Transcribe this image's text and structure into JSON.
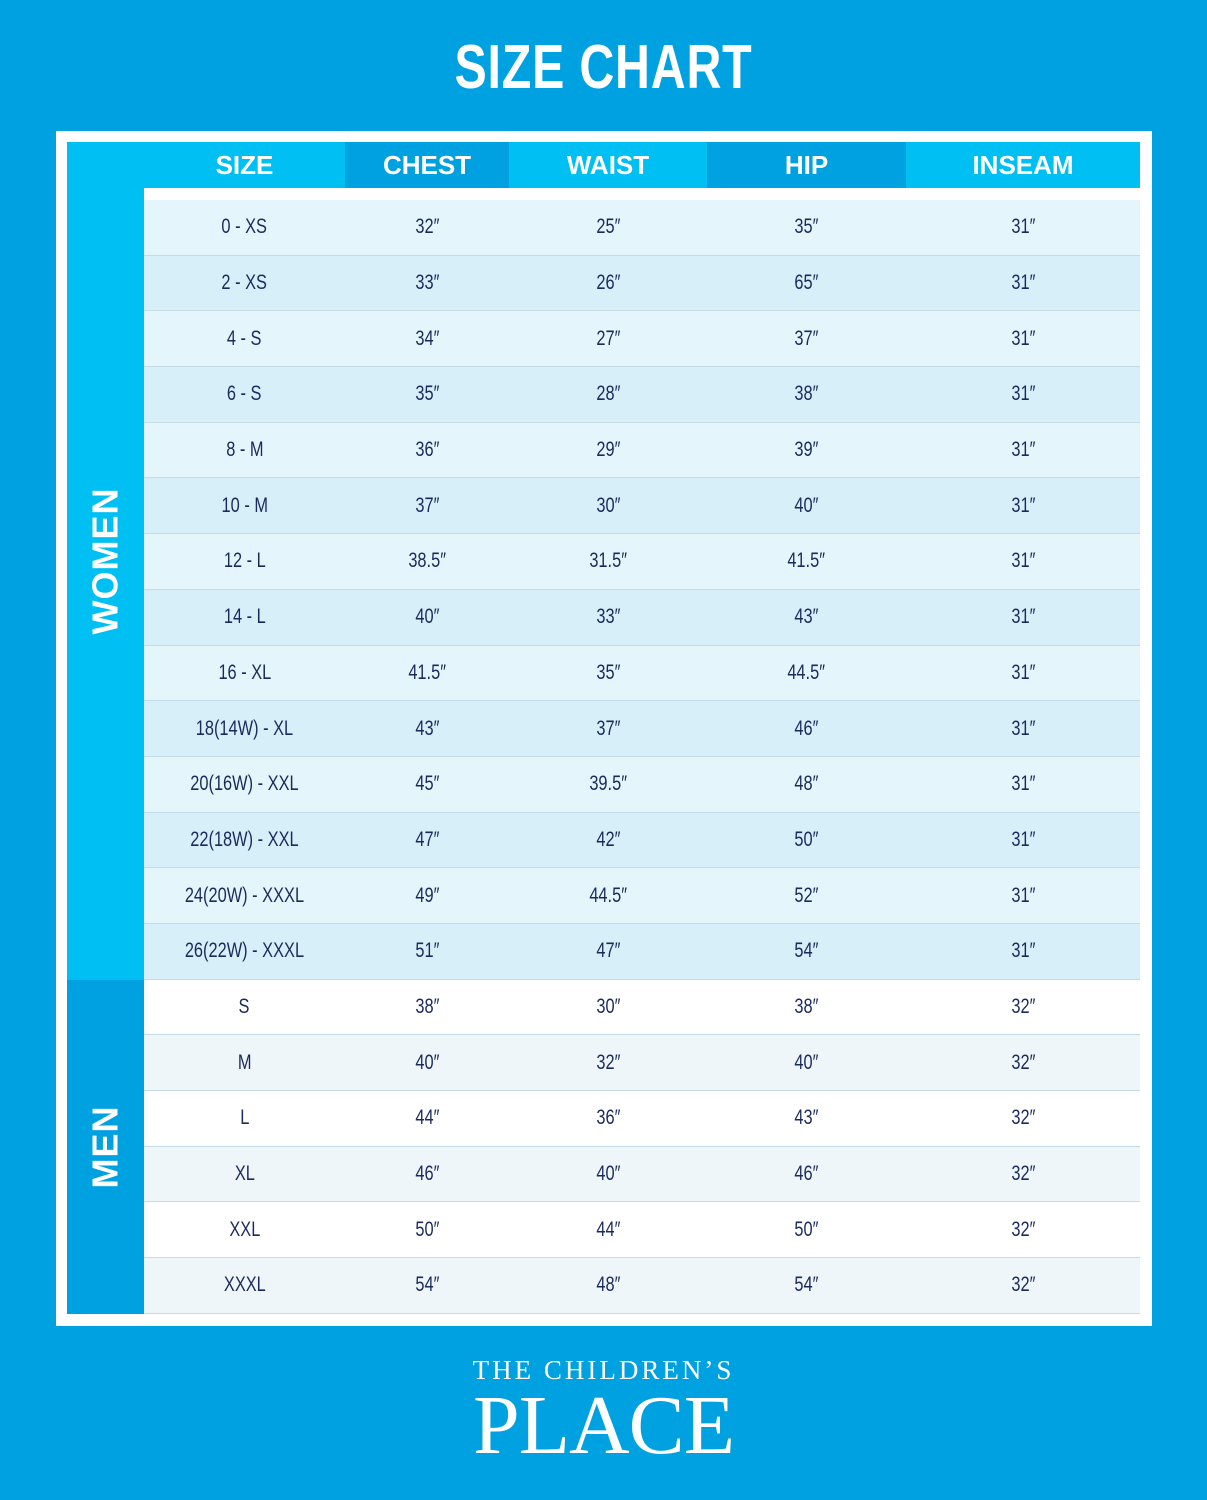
{
  "title": "SIZE CHART",
  "columns": [
    "SIZE",
    "CHEST",
    "WAIST",
    "HIP",
    "INSEAM"
  ],
  "groups": {
    "women": "WOMEN",
    "men": "MEN"
  },
  "colors": {
    "background": "#00a1e1",
    "header_light": "#00bff3",
    "header_dark": "#00a1e1",
    "text": "#1b2a5c"
  },
  "women_rows": [
    [
      "0 - XS",
      "32″",
      "25″",
      "35″",
      "31″"
    ],
    [
      "2 - XS",
      "33″",
      "26″",
      "65″",
      "31″"
    ],
    [
      "4 - S",
      "34″",
      "27″",
      "37″",
      "31″"
    ],
    [
      "6 - S",
      "35″",
      "28″",
      "38″",
      "31″"
    ],
    [
      "8 - M",
      "36″",
      "29″",
      "39″",
      "31″"
    ],
    [
      "10 - M",
      "37″",
      "30″",
      "40″",
      "31″"
    ],
    [
      "12 - L",
      "38.5″",
      "31.5″",
      "41.5″",
      "31″"
    ],
    [
      "14 - L",
      "40″",
      "33″",
      "43″",
      "31″"
    ],
    [
      "16 - XL",
      "41.5″",
      "35″",
      "44.5″",
      "31″"
    ],
    [
      "18(14W) - XL",
      "43″",
      "37″",
      "46″",
      "31″"
    ],
    [
      "20(16W) - XXL",
      "45″",
      "39.5″",
      "48″",
      "31″"
    ],
    [
      "22(18W) - XXL",
      "47″",
      "42″",
      "50″",
      "31″"
    ],
    [
      "24(20W) - XXXL",
      "49″",
      "44.5″",
      "52″",
      "31″"
    ],
    [
      "26(22W) - XXXL",
      "51″",
      "47″",
      "54″",
      "31″"
    ]
  ],
  "men_rows": [
    [
      "S",
      "38″",
      "30″",
      "38″",
      "32″"
    ],
    [
      "M",
      "40″",
      "32″",
      "40″",
      "32″"
    ],
    [
      "L",
      "44″",
      "36″",
      "43″",
      "32″"
    ],
    [
      "XL",
      "46″",
      "40″",
      "46″",
      "32″"
    ],
    [
      "XXL",
      "50″",
      "44″",
      "50″",
      "32″"
    ],
    [
      "XXXL",
      "54″",
      "48″",
      "54″",
      "32″"
    ]
  ],
  "logo": {
    "line1": "THE CHILDREN’S",
    "line2": "PLACE"
  }
}
